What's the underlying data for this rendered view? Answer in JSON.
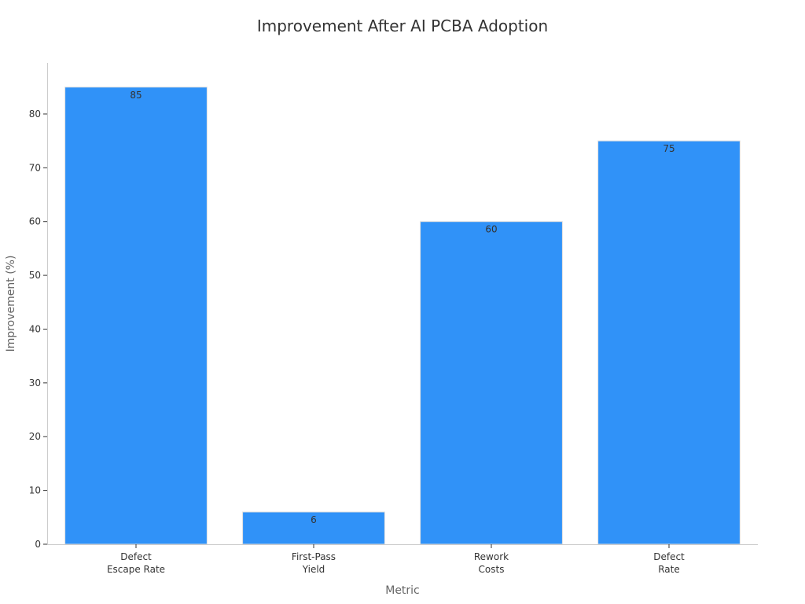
{
  "chart_data": {
    "type": "bar",
    "title": "Improvement After AI PCBA Adoption",
    "xlabel": "Metric",
    "ylabel": "Improvement (%)",
    "categories": [
      [
        "Defect",
        "Escape Rate"
      ],
      [
        "First-Pass",
        "Yield"
      ],
      [
        "Rework",
        "Costs"
      ],
      [
        "Defect",
        "Rate"
      ]
    ],
    "values": [
      85,
      6,
      60,
      75
    ],
    "ylim": [
      0,
      89.5
    ],
    "yticks": [
      0,
      10,
      20,
      30,
      40,
      50,
      60,
      70,
      80
    ],
    "bar_color": "#3092f8",
    "grid": false,
    "legend": "none",
    "data_labels": true
  }
}
